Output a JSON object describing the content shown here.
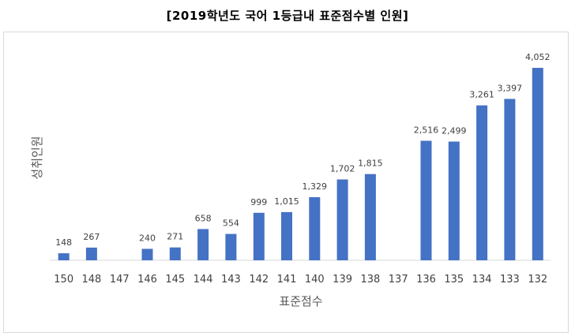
{
  "chart_data": {
    "type": "bar",
    "title": "[2019학년도 국어 1등급내 표준점수별 인원]",
    "xlabel": "표준점수",
    "ylabel": "성취인원",
    "categories": [
      "150",
      "148",
      "147",
      "146",
      "145",
      "144",
      "143",
      "142",
      "141",
      "140",
      "139",
      "138",
      "137",
      "136",
      "135",
      "134",
      "133",
      "132"
    ],
    "values": [
      148,
      267,
      null,
      240,
      271,
      658,
      554,
      999,
      1015,
      1329,
      1702,
      1815,
      null,
      2516,
      2499,
      3261,
      3397,
      4052
    ],
    "value_labels": [
      "148",
      "267",
      "",
      "240",
      "271",
      "658",
      "554",
      "999",
      "1,015",
      "1,329",
      "1,702",
      "1,815",
      "",
      "2,516",
      "2,499",
      "3,261",
      "3,397",
      "4,052"
    ],
    "bar_color": "#4472c4",
    "ylim": [
      0,
      4052
    ],
    "grid": false,
    "legend": "none"
  }
}
